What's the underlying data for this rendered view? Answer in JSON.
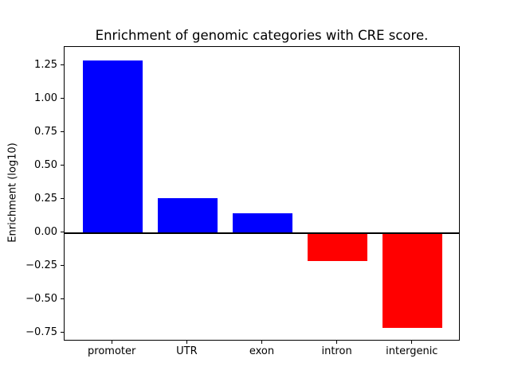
{
  "figure": {
    "background_color": "#ffffff"
  },
  "chart_data": {
    "type": "bar",
    "title": "Enrichment of genomic categories with CRE score.",
    "xlabel": "",
    "ylabel": "Enrichment (log10)",
    "categories": [
      "promoter",
      "UTR",
      "exon",
      "intron",
      "intergenic"
    ],
    "values": [
      1.29,
      0.26,
      0.15,
      -0.21,
      -0.71
    ],
    "bar_colors": [
      "#0000ff",
      "#0000ff",
      "#0000ff",
      "#ff0000",
      "#ff0000"
    ],
    "positive_color": "#0000ff",
    "negative_color": "#ff0000",
    "bar_width": 0.8,
    "ylim": [
      -0.81,
      1.39
    ],
    "xlim": [
      -0.64,
      4.64
    ],
    "yticks": [
      1.25,
      1.0,
      0.75,
      0.5,
      0.25,
      0.0,
      -0.25,
      -0.5,
      -0.75
    ],
    "ytick_labels": [
      "1.25",
      "1.00",
      "0.75",
      "0.50",
      "0.25",
      "0.00",
      "−0.25",
      "−0.50",
      "−0.75"
    ],
    "grid": false,
    "zero_line": true,
    "legend": null,
    "spines": "box"
  }
}
